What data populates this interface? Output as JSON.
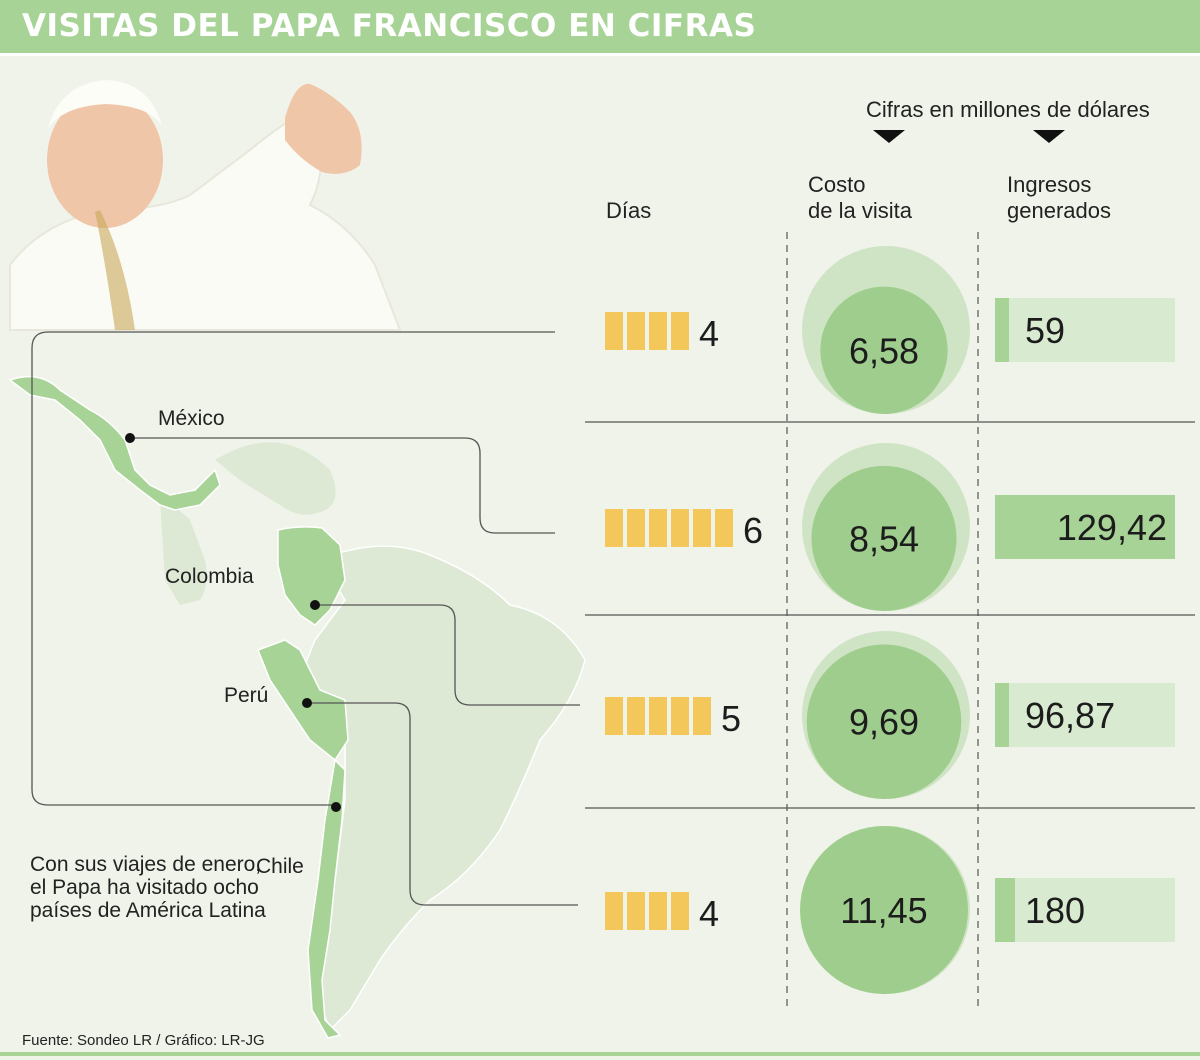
{
  "title": "VISITAS DEL PAPA FRANCISCO EN CIFRAS",
  "units_note": "Cifras en millones de dólares",
  "headers": {
    "dias": "Días",
    "costo": "Costo\nde la visita",
    "ingresos": "Ingresos\ngenerados"
  },
  "countries": [
    "México",
    "Colombia",
    "Perú",
    "Chile"
  ],
  "note": "Con sus viajes de enero, el Papa ha visitado ocho países de América Latina",
  "source": "Fuente: Sondeo LR / Gráfico: LR-JG",
  "colors": {
    "banner": "#a7d396",
    "circle_outer": "#cfe4c4",
    "circle_inner": "#9fcd8d",
    "bar_fill": "#a7d396",
    "bar_bg": "#d8eacf",
    "day_block": "#f3c75a",
    "land_main": "#a7d396",
    "land_other": "#dde9d5"
  },
  "chart_data": {
    "type": "table",
    "rows": [
      {
        "country": "México",
        "days": 4,
        "days_label": "4",
        "cost": 6.58,
        "cost_label": "6,58",
        "income": 59,
        "income_label": "59"
      },
      {
        "country": "Colombia",
        "days": 6,
        "days_label": "6",
        "cost": 8.54,
        "cost_label": "8,54",
        "income": 129.42,
        "income_label": "129,42"
      },
      {
        "country": "Perú",
        "days": 5,
        "days_label": "5",
        "cost": 9.69,
        "cost_label": "9,69",
        "income": 96.87,
        "income_label": "96,87"
      },
      {
        "country": "Chile",
        "days": 4,
        "days_label": "4",
        "cost": 11.45,
        "cost_label": "11,45",
        "income": 180,
        "income_label": "180"
      }
    ]
  }
}
